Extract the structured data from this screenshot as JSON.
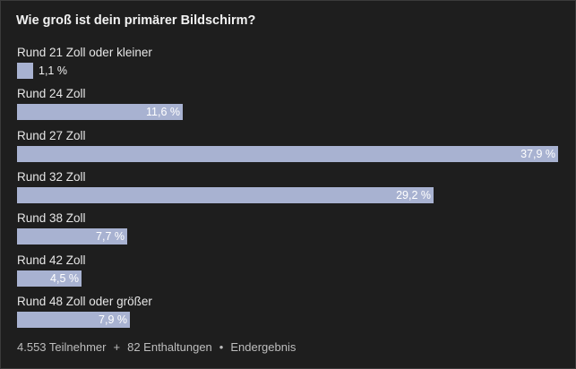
{
  "poll": {
    "title": "Wie groß ist dein primärer Bildschirm?",
    "bar_color": "#a8b2d1",
    "options": [
      {
        "label": "Rund 21 Zoll oder kleiner",
        "percent": 1.1,
        "percent_text": "1,1 %"
      },
      {
        "label": "Rund 24 Zoll",
        "percent": 11.6,
        "percent_text": "11,6 %"
      },
      {
        "label": "Rund 27 Zoll",
        "percent": 37.9,
        "percent_text": "37,9 %"
      },
      {
        "label": "Rund 32 Zoll",
        "percent": 29.2,
        "percent_text": "29,2 %"
      },
      {
        "label": "Rund 38 Zoll",
        "percent": 7.7,
        "percent_text": "7,7 %"
      },
      {
        "label": "Rund 42 Zoll",
        "percent": 4.5,
        "percent_text": "4,5 %"
      },
      {
        "label": "Rund 48 Zoll oder größer",
        "percent": 7.9,
        "percent_text": "7,9 %"
      }
    ],
    "footer": {
      "participants": "4.553 Teilnehmer",
      "sep1": "+",
      "abstentions": "82 Enthaltungen",
      "sep2": "•",
      "status": "Endergebnis"
    }
  }
}
